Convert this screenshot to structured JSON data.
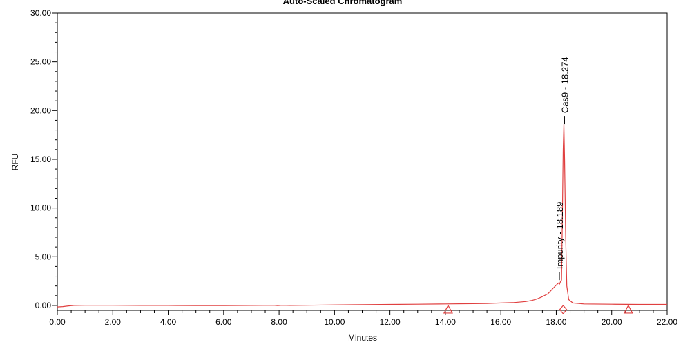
{
  "chart_data": {
    "type": "line",
    "title": "Auto-Scaled Chromatogram",
    "xlabel": "Minutes",
    "ylabel": "RFU",
    "xlim": [
      0,
      22
    ],
    "ylim": [
      -0.5,
      30
    ],
    "x_ticks": [
      "0.00",
      "2.00",
      "4.00",
      "6.00",
      "8.00",
      "10.00",
      "12.00",
      "14.00",
      "16.00",
      "18.00",
      "20.00",
      "22.00"
    ],
    "y_ticks": [
      "0.00",
      "5.00",
      "10.00",
      "15.00",
      "20.00",
      "25.00",
      "30.00"
    ],
    "grid": false,
    "line_color": "#e04040",
    "series": [
      {
        "x": [
          0.0,
          0.2,
          0.4,
          0.6,
          1.0,
          2.0,
          3.0,
          4.0,
          5.0,
          6.0,
          7.0,
          7.8,
          7.95,
          8.1,
          8.4,
          9.0,
          10.0,
          11.0,
          12.0,
          13.0,
          14.0,
          15.0,
          15.5,
          16.0,
          16.5,
          16.9,
          17.1,
          17.3,
          17.5,
          17.7,
          17.8,
          17.9,
          18.0,
          18.08,
          18.12,
          18.16,
          18.19,
          18.22,
          18.25,
          18.274,
          18.3,
          18.34,
          18.38,
          18.45,
          18.6,
          19.0,
          20.0,
          21.0,
          22.0
        ],
        "y": [
          -0.15,
          -0.12,
          -0.05,
          0.0,
          0.02,
          0.02,
          0.0,
          0.0,
          -0.02,
          -0.02,
          0.0,
          0.02,
          -0.02,
          0.02,
          0.0,
          0.02,
          0.05,
          0.08,
          0.1,
          0.12,
          0.15,
          0.18,
          0.2,
          0.25,
          0.3,
          0.4,
          0.5,
          0.65,
          0.9,
          1.2,
          1.5,
          1.8,
          2.1,
          2.3,
          2.2,
          2.5,
          2.6,
          9.0,
          16.0,
          18.6,
          15.0,
          7.0,
          2.0,
          0.6,
          0.25,
          0.15,
          0.12,
          0.1,
          0.1
        ]
      }
    ],
    "peaks": [
      {
        "label": "Cas9 - 18.274",
        "x": 18.274,
        "y": 18.6
      },
      {
        "label": "Impurity - 18.189",
        "x": 18.189,
        "y": 2.6
      }
    ],
    "baseline_markers": [
      {
        "x": 14.1,
        "shape": "triangle"
      },
      {
        "x": 18.25,
        "shape": "diamond"
      },
      {
        "x": 20.6,
        "shape": "triangle"
      }
    ]
  }
}
